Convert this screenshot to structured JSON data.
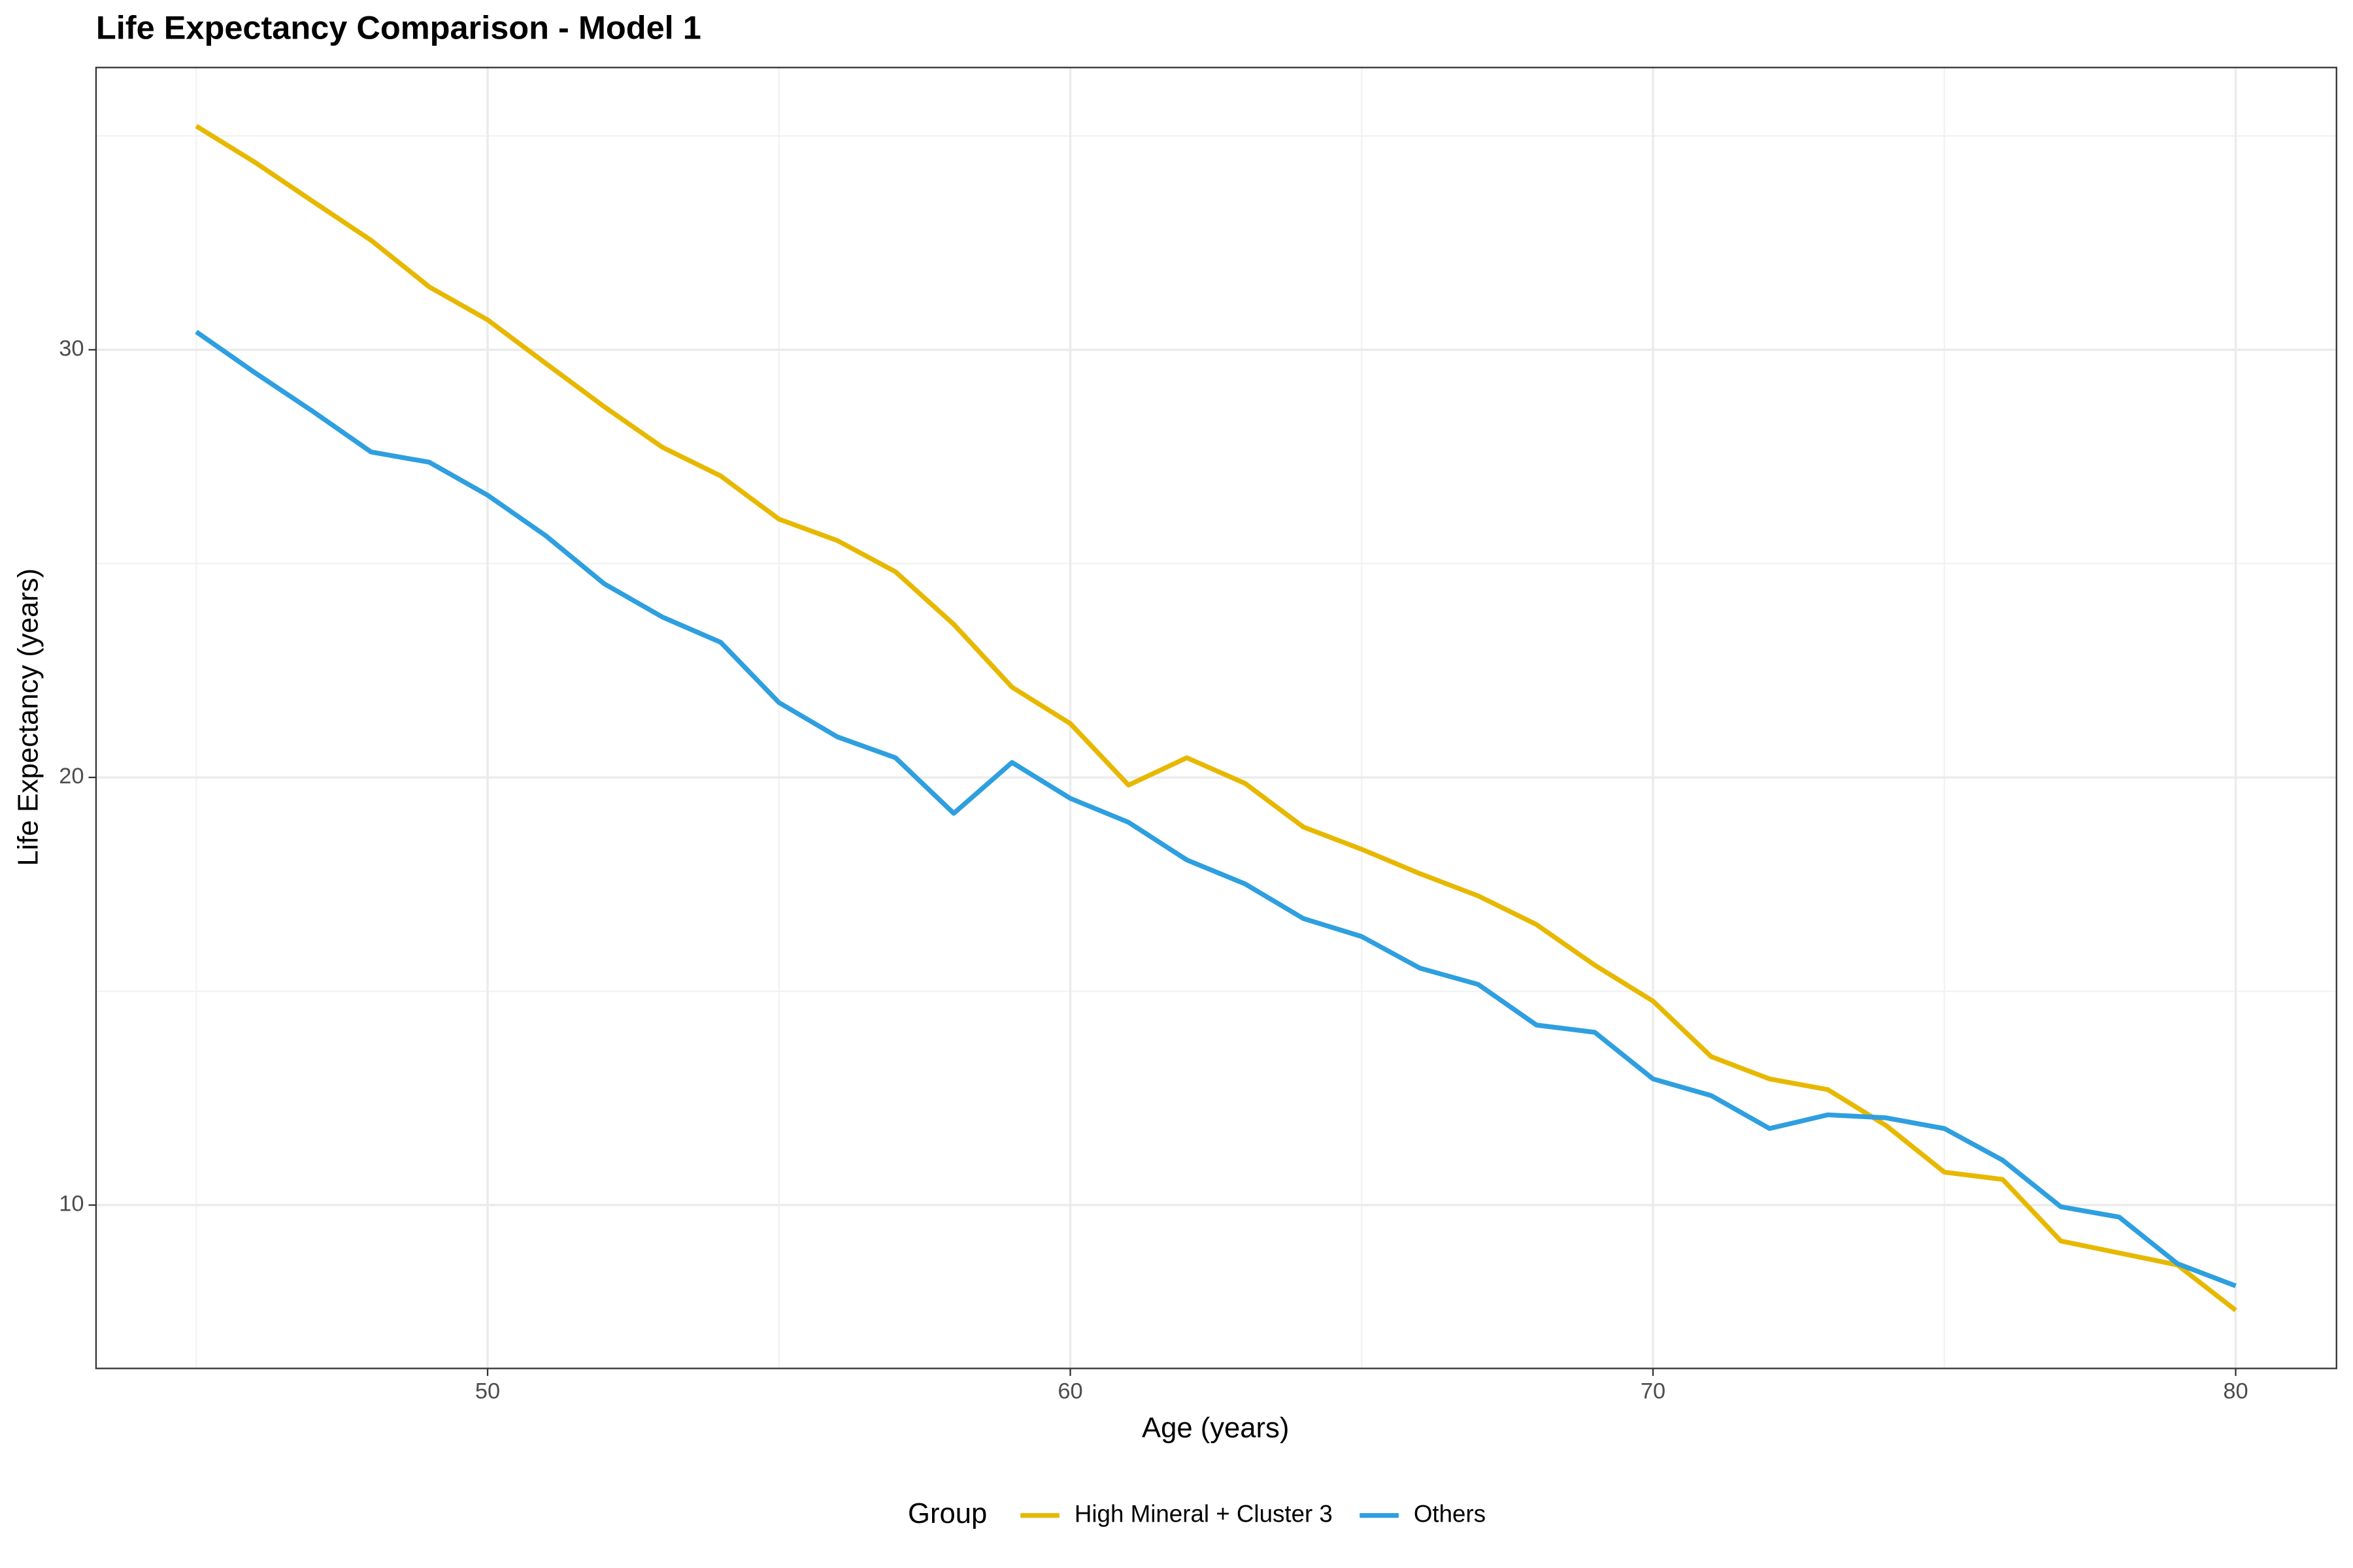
{
  "chart_data": {
    "type": "line",
    "title": "Life Expectancy Comparison - Model 1",
    "x_label": "Age (years)",
    "y_label": "Life Expectancy (years)",
    "legend_title": "Group",
    "legend_position": "bottom",
    "grid": true,
    "x": [
      45,
      46,
      47,
      48,
      49,
      50,
      51,
      52,
      53,
      54,
      55,
      56,
      57,
      58,
      59,
      60,
      61,
      62,
      63,
      64,
      65,
      66,
      67,
      68,
      69,
      70,
      71,
      72,
      73,
      74,
      75,
      76,
      77,
      78,
      79,
      80
    ],
    "series": [
      {
        "name": "High Mineral + Cluster 3",
        "color": "#e7b800",
        "values": [
          35.23,
          34.39,
          33.47,
          32.56,
          31.47,
          30.7,
          29.68,
          28.67,
          27.72,
          27.05,
          26.04,
          25.54,
          24.81,
          23.58,
          22.11,
          21.26,
          19.82,
          20.46,
          19.86,
          18.84,
          18.32,
          17.75,
          17.23,
          16.56,
          15.61,
          14.77,
          13.47,
          12.95,
          12.7,
          11.86,
          10.77,
          10.6,
          9.16,
          8.88,
          8.6,
          7.54
        ]
      },
      {
        "name": "Others",
        "color": "#2e9fdf",
        "values": [
          30.42,
          29.47,
          28.56,
          27.61,
          27.37,
          26.6,
          25.65,
          24.53,
          23.75,
          23.16,
          21.75,
          20.95,
          20.46,
          19.16,
          20.35,
          19.51,
          18.95,
          18.07,
          17.51,
          16.7,
          16.28,
          15.54,
          15.16,
          14.21,
          14.04,
          12.95,
          12.56,
          11.79,
          12.11,
          12.04,
          11.79,
          11.05,
          9.96,
          9.72,
          8.63,
          8.11
        ]
      }
    ],
    "xlim": [
      43.28,
      81.73
    ],
    "xticks": [
      50,
      60,
      70,
      80
    ],
    "ylim": [
      6.18,
      36.6
    ],
    "yticks": [
      10,
      20,
      30
    ]
  }
}
